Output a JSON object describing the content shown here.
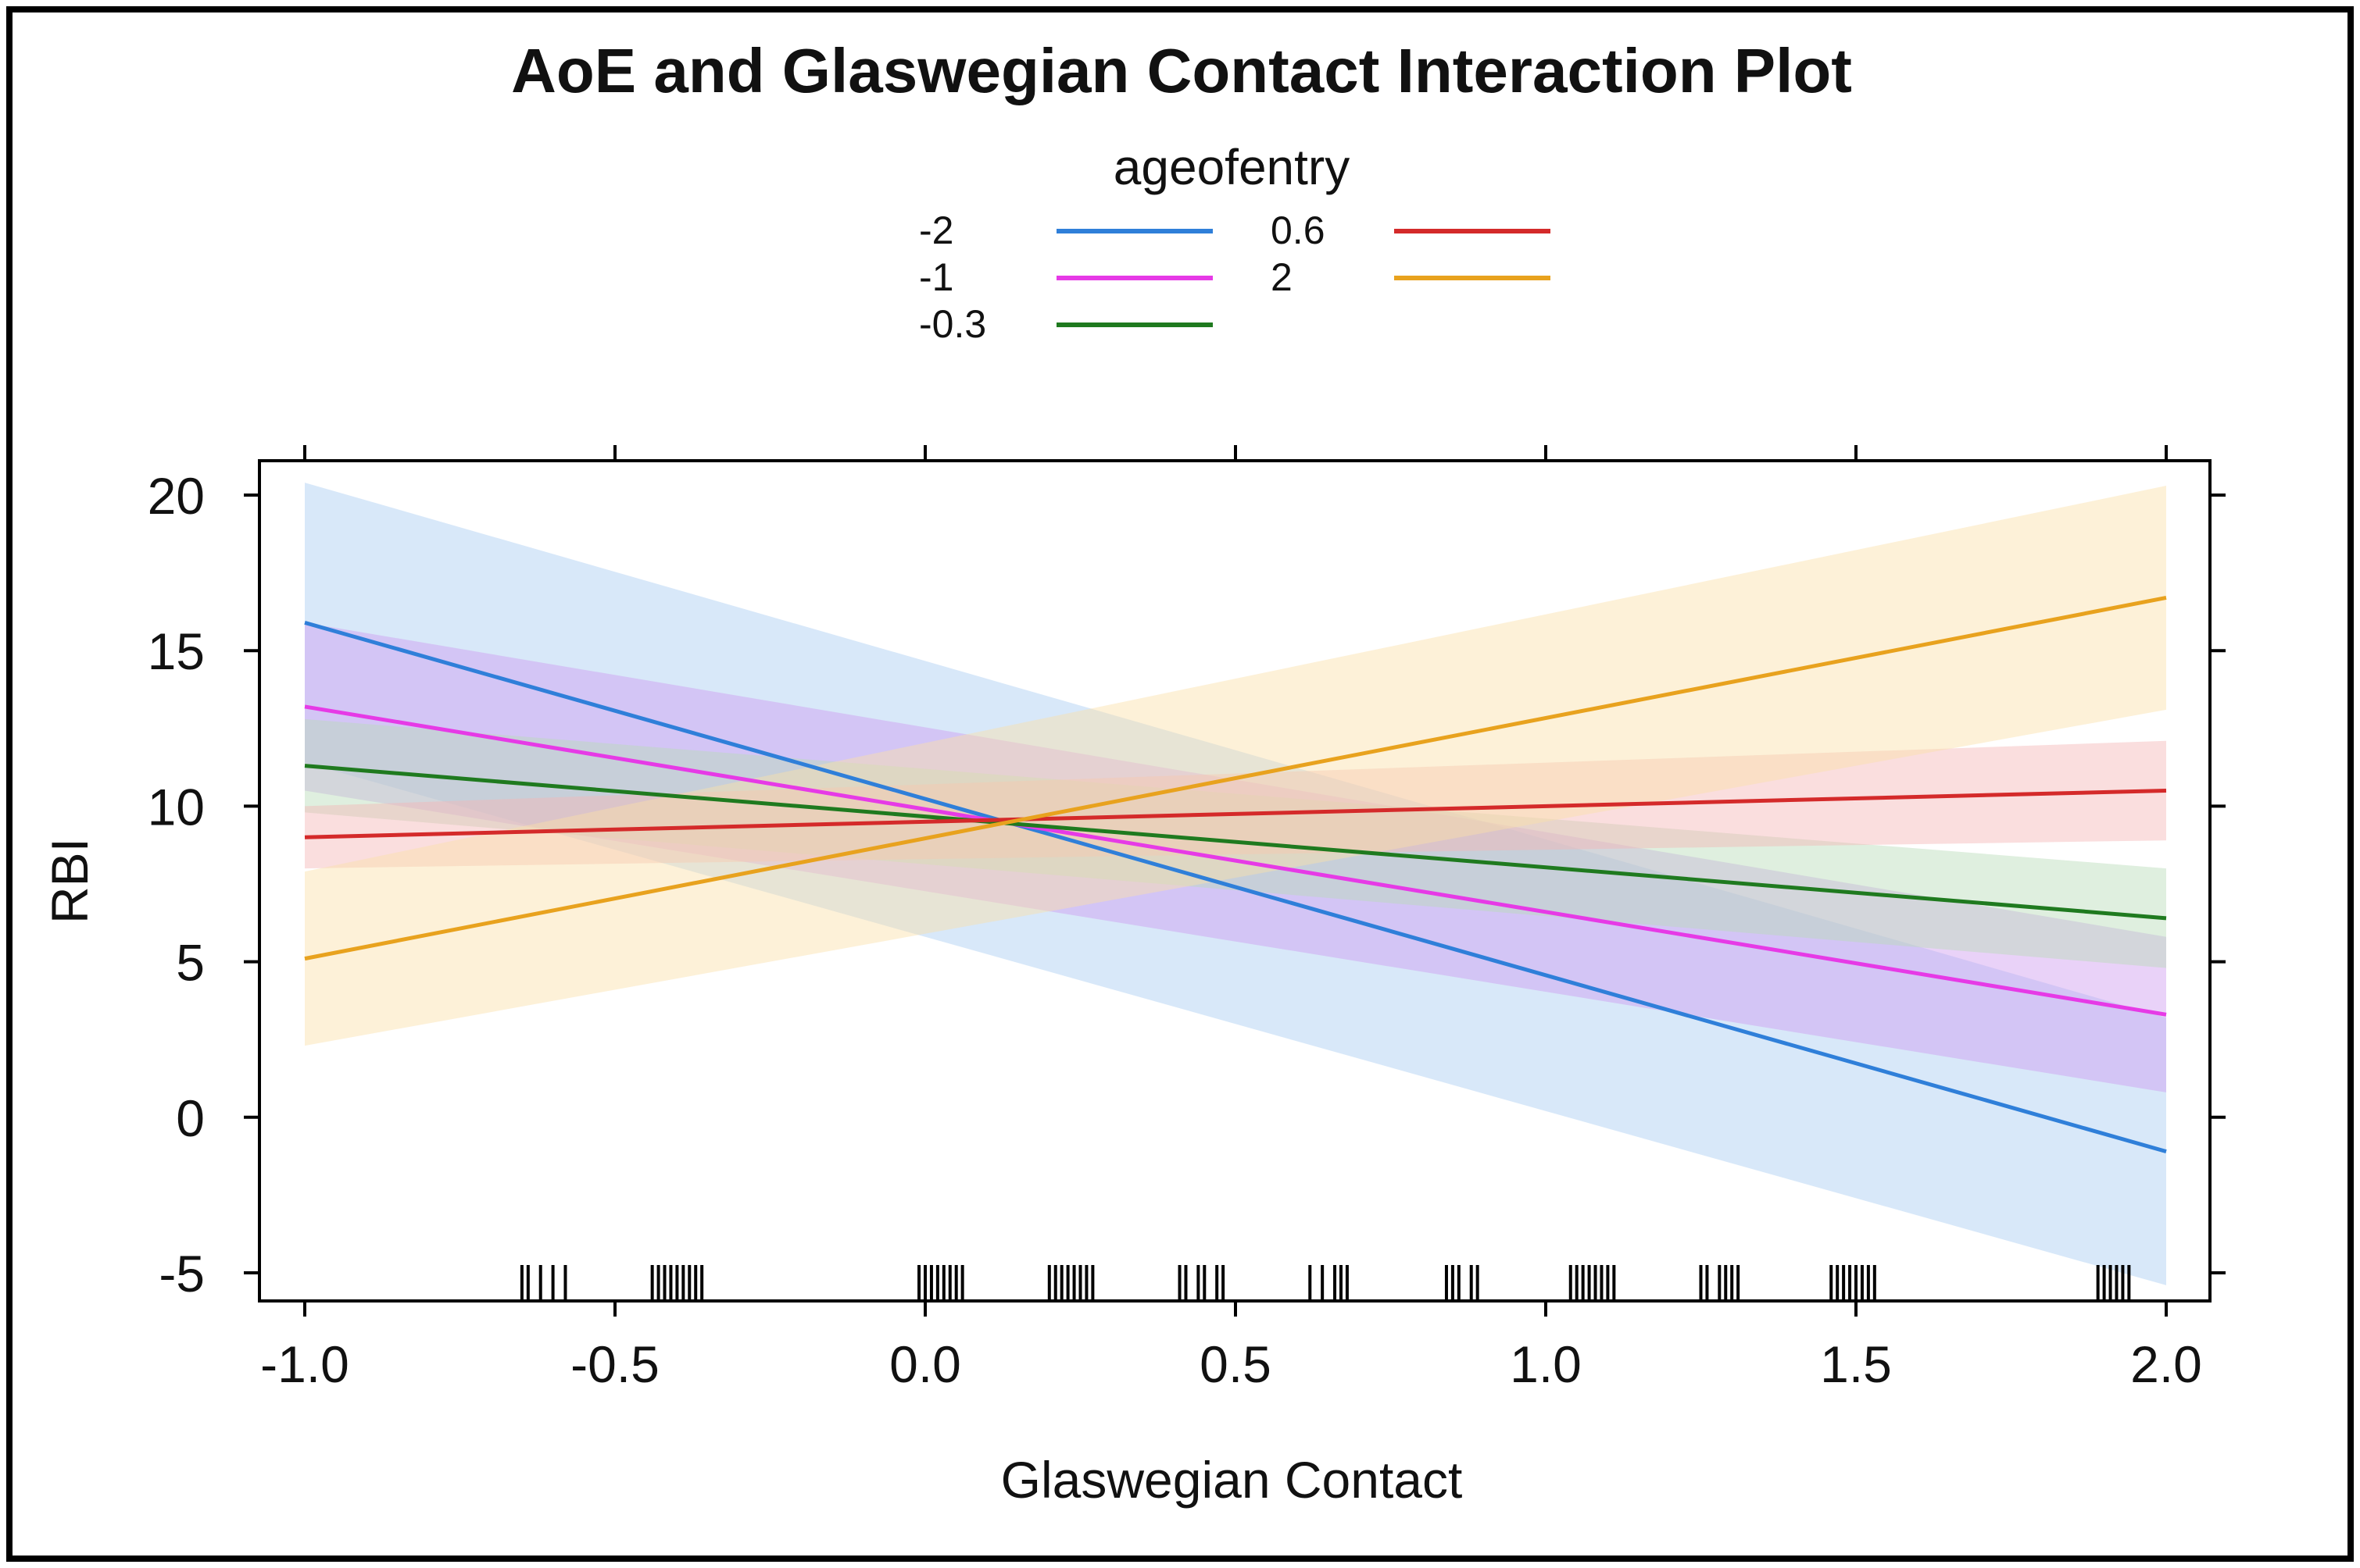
{
  "chart_data": {
    "type": "line",
    "title": "AoE and Glaswegian Contact Interaction Plot",
    "xlabel": "Glaswegian Contact",
    "ylabel": "RBI",
    "xlim": [
      -1.0,
      2.0
    ],
    "ylim": [
      -5,
      20
    ],
    "x_ticks": [
      "-1.0",
      "-0.5",
      "0.0",
      "0.5",
      "1.0",
      "1.5",
      "2.0"
    ],
    "y_ticks": [
      "20",
      "15",
      "10",
      "5",
      "0",
      "-5"
    ],
    "legend": {
      "title": "ageofentry",
      "placement": "top"
    },
    "series": [
      {
        "name": "-2",
        "color": "#2f7fd9",
        "band_color": "#a9cdf2",
        "x": [
          -1.0,
          2.0
        ],
        "values": [
          15.9,
          -1.1
        ],
        "lower": [
          11.4,
          -5.4
        ],
        "upper": [
          20.4,
          3.2
        ]
      },
      {
        "name": "-1",
        "color": "#e63ae6",
        "band_color": "#cf9cf0",
        "x": [
          -1.0,
          2.0
        ],
        "values": [
          13.2,
          3.3
        ],
        "lower": [
          10.5,
          0.8
        ],
        "upper": [
          15.9,
          5.8
        ]
      },
      {
        "name": "-0.3",
        "color": "#1f7a1f",
        "band_color": "#b7dcb7",
        "x": [
          -1.0,
          2.0
        ],
        "values": [
          11.3,
          6.4
        ],
        "lower": [
          9.8,
          4.8
        ],
        "upper": [
          12.8,
          8.0
        ]
      },
      {
        "name": "0.6",
        "color": "#d42a2a",
        "band_color": "#f4b6b6",
        "x": [
          -1.0,
          2.0
        ],
        "values": [
          9.0,
          10.5
        ],
        "lower": [
          8.0,
          8.9
        ],
        "upper": [
          10.0,
          12.1
        ]
      },
      {
        "name": "2",
        "color": "#e8a21e",
        "band_color": "#fbdfa8",
        "x": [
          -1.0,
          2.0
        ],
        "values": [
          5.1,
          16.7
        ],
        "lower": [
          2.3,
          13.1
        ],
        "upper": [
          7.9,
          20.3
        ]
      }
    ],
    "rug_x": [
      -0.65,
      -0.64,
      -0.62,
      -0.6,
      -0.58,
      -0.44,
      -0.43,
      -0.42,
      -0.41,
      -0.4,
      -0.39,
      -0.38,
      -0.37,
      -0.36,
      -0.01,
      0.0,
      0.01,
      0.02,
      0.03,
      0.04,
      0.05,
      0.06,
      0.2,
      0.21,
      0.22,
      0.23,
      0.24,
      0.25,
      0.26,
      0.27,
      0.41,
      0.42,
      0.44,
      0.45,
      0.47,
      0.48,
      0.62,
      0.64,
      0.66,
      0.67,
      0.68,
      0.84,
      0.85,
      0.86,
      0.88,
      0.89,
      1.04,
      1.05,
      1.06,
      1.07,
      1.08,
      1.09,
      1.1,
      1.11,
      1.25,
      1.26,
      1.28,
      1.29,
      1.3,
      1.31,
      1.46,
      1.47,
      1.48,
      1.49,
      1.5,
      1.51,
      1.52,
      1.53,
      1.89,
      1.9,
      1.91,
      1.92,
      1.93,
      1.94
    ]
  }
}
